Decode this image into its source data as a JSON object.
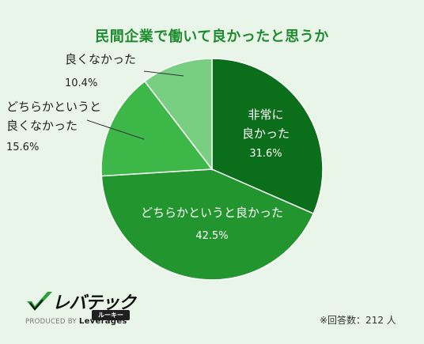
{
  "chart_data": {
    "type": "pie",
    "title": "民間企業で働いて良かったと思うか",
    "categories": [
      "非常に良かった",
      "どちらかというと良かった",
      "どちらかというと良くなかった",
      "良くなかった"
    ],
    "values": [
      31.6,
      42.5,
      15.6,
      10.4
    ],
    "value_labels": [
      "31.6%",
      "42.5%",
      "15.6%",
      "10.4%"
    ],
    "colors": [
      "#0b6e1a",
      "#22952f",
      "#3db848",
      "#78cf82"
    ],
    "label_lines": [
      [
        "非常に",
        "良かった"
      ],
      [
        "どちらかというと良かった"
      ],
      [
        "どちらかというと",
        "良くなかった"
      ],
      [
        "良くなかった"
      ]
    ],
    "start_angle_deg": 0,
    "direction": "clockwise"
  },
  "footer": {
    "note": "※回答数：212 人",
    "brand_name": "レバテック",
    "brand_sub": "ルーキー",
    "produced_by": "PRODUCED BY",
    "produced_company": "Leverages"
  }
}
